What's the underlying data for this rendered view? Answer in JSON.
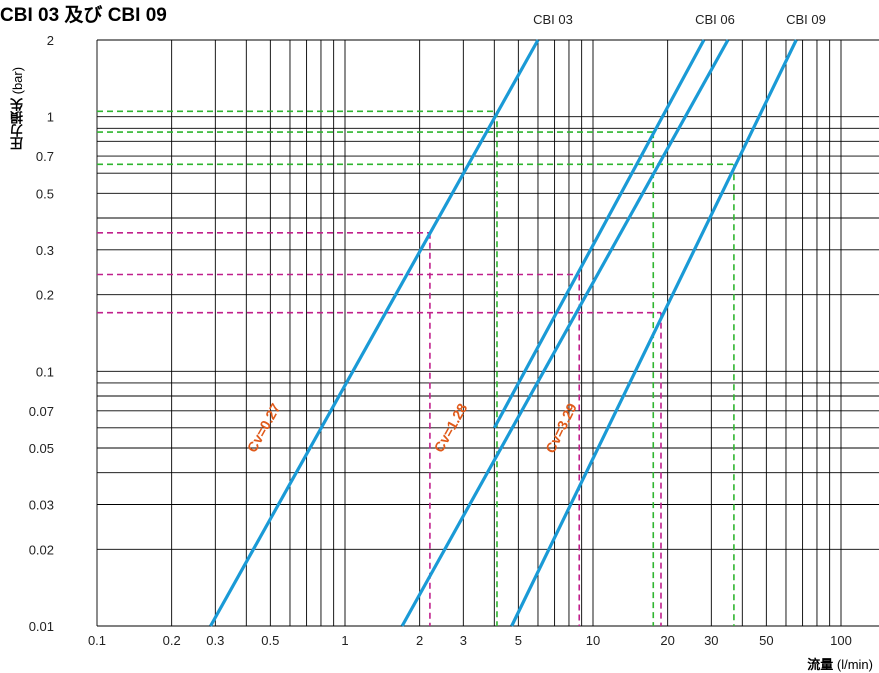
{
  "title": "CBI 03 及び CBI 09",
  "y_axis_label": {
    "bold": "圧力損失",
    "unit": "(bar)"
  },
  "x_axis_label": {
    "bold": "流量",
    "unit": "(l/min)"
  },
  "chart_data": {
    "type": "line",
    "x_scale": "log",
    "y_scale": "log",
    "xlim": [
      0.1,
      100
    ],
    "ylim": [
      0.01,
      2
    ],
    "x_ticks": [
      {
        "value": 0.1,
        "label": "0.1"
      },
      {
        "value": 0.2,
        "label": "0.2"
      },
      {
        "value": 0.3,
        "label": "0.3"
      },
      {
        "value": 0.5,
        "label": "0.5"
      },
      {
        "value": 1,
        "label": "1"
      },
      {
        "value": 2,
        "label": "2"
      },
      {
        "value": 3,
        "label": "3"
      },
      {
        "value": 5,
        "label": "5"
      },
      {
        "value": 10,
        "label": "10"
      },
      {
        "value": 20,
        "label": "20"
      },
      {
        "value": 30,
        "label": "30"
      },
      {
        "value": 50,
        "label": "50"
      },
      {
        "value": 100,
        "label": "100"
      }
    ],
    "y_ticks": [
      {
        "value": 0.01,
        "label": "0.01"
      },
      {
        "value": 0.02,
        "label": "0.02"
      },
      {
        "value": 0.03,
        "label": "0.03"
      },
      {
        "value": 0.05,
        "label": "0.05"
      },
      {
        "value": 0.07,
        "label": "0.07"
      },
      {
        "value": 0.1,
        "label": "0.1"
      },
      {
        "value": 0.2,
        "label": "0.2"
      },
      {
        "value": 0.3,
        "label": "0.3"
      },
      {
        "value": 0.5,
        "label": "0.5"
      },
      {
        "value": 0.7,
        "label": "0.7"
      },
      {
        "value": 1,
        "label": "1"
      },
      {
        "value": 2,
        "label": "2"
      }
    ],
    "grid": true,
    "series": [
      {
        "name": "CBI 03",
        "cv_label": "Cv=0.27",
        "color": "#1a9ad6",
        "x": [
          0.287,
          6.0
        ],
        "y": [
          0.01,
          2
        ]
      },
      {
        "name": "",
        "cv_label": "Cv=1.28",
        "color": "#1a9ad6",
        "x": [
          1.7,
          35.0
        ],
        "y": [
          0.01,
          2
        ]
      },
      {
        "name": "CBI 06",
        "cv_label": "",
        "color": "#1a9ad6",
        "x": [
          4.0,
          28.0
        ],
        "y": [
          0.06,
          2
        ]
      },
      {
        "name": "CBI 09",
        "cv_label": "Cv=3.29",
        "color": "#1a9ad6",
        "x": [
          4.7,
          66.0
        ],
        "y": [
          0.01,
          2
        ]
      }
    ],
    "reference_lines": [
      {
        "color": "#2fb52f",
        "x": 4.1,
        "y": 1.05
      },
      {
        "color": "#2fb52f",
        "x": 17.5,
        "y": 0.87
      },
      {
        "color": "#2fb52f",
        "x": 37,
        "y": 0.65
      },
      {
        "color": "#c0208c",
        "x": 2.2,
        "y": 0.35
      },
      {
        "color": "#c0208c",
        "x": 8.8,
        "y": 0.24
      },
      {
        "color": "#c0208c",
        "x": 18.8,
        "y": 0.17
      }
    ]
  }
}
